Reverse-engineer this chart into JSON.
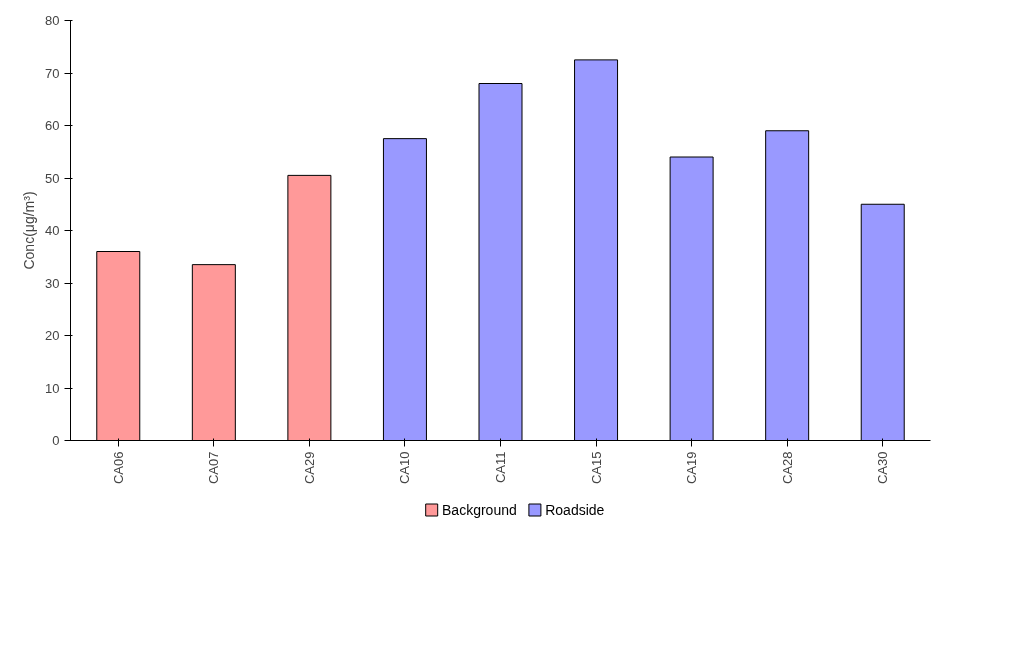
{
  "chart_data": {
    "type": "bar",
    "ylabel": "Conc(μg/m³)",
    "categories": [
      "CA06",
      "CA07",
      "CA29",
      "CA10",
      "CA11",
      "CA15",
      "CA19",
      "CA28",
      "CA30"
    ],
    "series": [
      {
        "name": "Background",
        "color": "#ff9999",
        "values": [
          36,
          33.5,
          50.5,
          null,
          null,
          null,
          null,
          null,
          null
        ]
      },
      {
        "name": "Roadside",
        "color": "#9999ff",
        "values": [
          null,
          null,
          null,
          57.5,
          68,
          72.5,
          54,
          59,
          45
        ]
      }
    ],
    "stacked": true,
    "ylim": [
      0,
      80
    ],
    "yticks": [
      0,
      10,
      20,
      30,
      40,
      50,
      60,
      70,
      80
    ],
    "grid": false,
    "legend": "bottom"
  }
}
